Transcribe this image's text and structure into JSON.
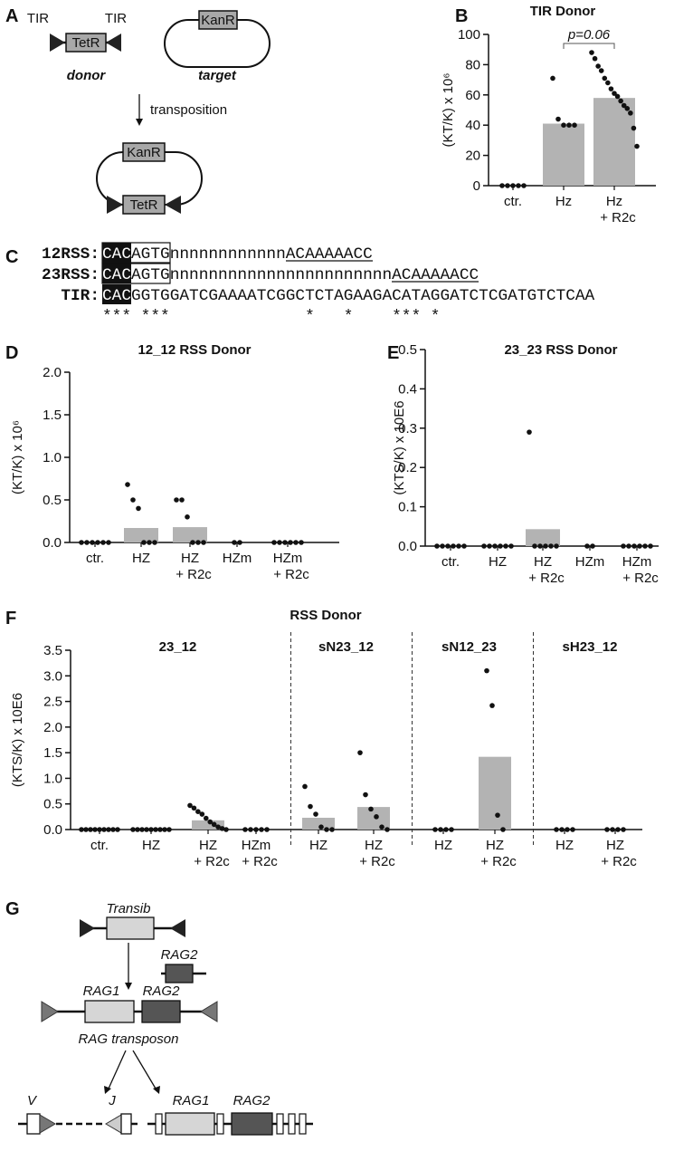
{
  "panel_labels": [
    "A",
    "B",
    "C",
    "D",
    "E",
    "F",
    "G"
  ],
  "diagram_a": {
    "tir_left": "TIR",
    "tir_right": "TIR",
    "donor_gene": "TetR",
    "target_gene": "KanR",
    "donor": "donor",
    "target": "target",
    "arrow": "transposition",
    "product_genes": [
      "KanR",
      "TetR"
    ]
  },
  "sequences": {
    "rows": [
      {
        "label": "12RSS:",
        "cac": "CAC",
        "heptamer_rest": "AGTG",
        "spacer": "nnnnnnnnnnnn",
        "nonamer": "ACAAAAACC"
      },
      {
        "label": "23RSS:",
        "cac": "CAC",
        "heptamer_rest": "AGTG",
        "spacer": "nnnnnnnnnnnnnnnnnnnnnnn",
        "nonamer": "ACAAAAACC"
      },
      {
        "label": "TIR:",
        "cac": "CAC",
        "rest": "GGTGGATCGAAAATCGGCTCTAGAAGACATAGGATCTCGATGTCTCAA"
      }
    ],
    "conservation": "*** ***              *   *    *** *"
  },
  "diagram_g": {
    "transib": "Transib",
    "rag2_gene": "RAG2",
    "transposon_genes": [
      "RAG1",
      "RAG2"
    ],
    "transposon": "RAG transposon",
    "v": "V",
    "j": "J",
    "locus_genes": [
      "RAG1",
      "RAG2"
    ]
  },
  "chart_data": [
    {
      "type": "bar",
      "title": "TIR Donor",
      "y_label": "(KT/K) x 10⁶",
      "annotation": "p=0.06",
      "color": "#b3b3b3",
      "categories": [
        "ctr.",
        "Hz",
        "Hz"
      ],
      "category_sublabels": [
        null,
        null,
        "+ R2c"
      ],
      "values": [
        0,
        41,
        58
      ],
      "points": [
        [
          0,
          0,
          0,
          0,
          0
        ],
        [
          71,
          44,
          40,
          40,
          40
        ],
        [
          88,
          84,
          79,
          76,
          71,
          68,
          64,
          61,
          59,
          56,
          53,
          51,
          48,
          38,
          26
        ]
      ],
      "ylim": [
        0,
        100
      ],
      "yticks": [
        0,
        20,
        40,
        60,
        80,
        100
      ]
    },
    {
      "type": "bar",
      "title": "12_12 RSS Donor",
      "y_label": "(KT/K) x 10⁶",
      "color": "#b3b3b3",
      "categories": [
        "ctr.",
        "HZ",
        "HZ",
        "HZm",
        "HZm"
      ],
      "category_sublabels": [
        null,
        null,
        "+ R2c",
        null,
        "+ R2c"
      ],
      "values": [
        0,
        0.17,
        0.18,
        0,
        0
      ],
      "points": [
        [
          0,
          0,
          0,
          0,
          0,
          0
        ],
        [
          0.68,
          0.5,
          0.4,
          0,
          0,
          0
        ],
        [
          0.5,
          0.5,
          0.3,
          0,
          0,
          0
        ],
        [
          0,
          0
        ],
        [
          0,
          0,
          0,
          0,
          0,
          0
        ]
      ],
      "ylim": [
        0,
        2
      ],
      "yticks": [
        {
          "value": 0,
          "label": "0.0"
        },
        0.5,
        {
          "value": 1,
          "label": "1.0"
        },
        1.5,
        {
          "value": 2,
          "label": "2.0"
        }
      ]
    },
    {
      "type": "bar",
      "title": "23_23 RSS Donor",
      "y_label": "(KTS/K) x 10E6",
      "color": "#b3b3b3",
      "categories": [
        "ctr.",
        "HZ",
        "HZ",
        "HZm",
        "HZm"
      ],
      "category_sublabels": [
        null,
        null,
        "+ R2c",
        null,
        "+ R2c"
      ],
      "values": [
        0,
        0,
        0.043,
        0,
        0
      ],
      "points": [
        [
          0,
          0,
          0,
          0,
          0,
          0
        ],
        [
          0,
          0,
          0,
          0,
          0,
          0
        ],
        [
          0.29,
          0,
          0,
          0,
          0,
          0
        ],
        [
          0,
          0
        ],
        [
          0,
          0,
          0,
          0,
          0,
          0
        ]
      ],
      "ylim": [
        0,
        0.5
      ],
      "yticks": [
        {
          "value": 0,
          "label": "0.0"
        },
        0.1,
        0.2,
        0.3,
        0.4,
        0.5
      ]
    },
    {
      "type": "grouped_bar",
      "title": "RSS Donor",
      "y_label": "(KTS/K) x 10E6",
      "color": "#b3b3b3",
      "ylim": [
        0,
        3.5
      ],
      "yticks": [
        {
          "value": 0,
          "label": "0.0"
        },
        0.5,
        {
          "value": 1,
          "label": "1.0"
        },
        1.5,
        {
          "value": 2,
          "label": "2.0"
        },
        2.5,
        {
          "value": 3,
          "label": "3.0"
        },
        3.5
      ],
      "groups": [
        {
          "name": "23_12",
          "categories": [
            "ctr.",
            "HZ",
            "HZ",
            "HZm"
          ],
          "category_sublabels": [
            null,
            null,
            "+ R2c",
            "+ R2c"
          ],
          "values": [
            0,
            0,
            0.18,
            0
          ],
          "points": [
            [
              0,
              0,
              0,
              0,
              0,
              0,
              0,
              0,
              0
            ],
            [
              0,
              0,
              0,
              0,
              0,
              0,
              0,
              0,
              0
            ],
            [
              0.47,
              0.42,
              0.35,
              0.3,
              0.22,
              0.15,
              0.1,
              0.05,
              0.02,
              0
            ],
            [
              0,
              0,
              0,
              0,
              0
            ]
          ]
        },
        {
          "name": "sN23_12",
          "categories": [
            "HZ",
            "HZ"
          ],
          "category_sublabels": [
            null,
            "+ R2c"
          ],
          "values": [
            0.23,
            0.44
          ],
          "points": [
            [
              0.84,
              0.45,
              0.3,
              0.05,
              0,
              0
            ],
            [
              1.5,
              0.68,
              0.4,
              0.25,
              0.05,
              0
            ]
          ]
        },
        {
          "name": "sN12_23",
          "categories": [
            "HZ",
            "HZ"
          ],
          "category_sublabels": [
            null,
            "+ R2c"
          ],
          "values": [
            0,
            1.42
          ],
          "points": [
            [
              0,
              0,
              0,
              0
            ],
            [
              3.1,
              2.42,
              0.28,
              0
            ]
          ]
        },
        {
          "name": "sH23_12",
          "categories": [
            "HZ",
            "HZ"
          ],
          "category_sublabels": [
            null,
            "+ R2c"
          ],
          "values": [
            0,
            0
          ],
          "points": [
            [
              0,
              0,
              0,
              0
            ],
            [
              0,
              0,
              0,
              0
            ]
          ]
        }
      ]
    }
  ]
}
